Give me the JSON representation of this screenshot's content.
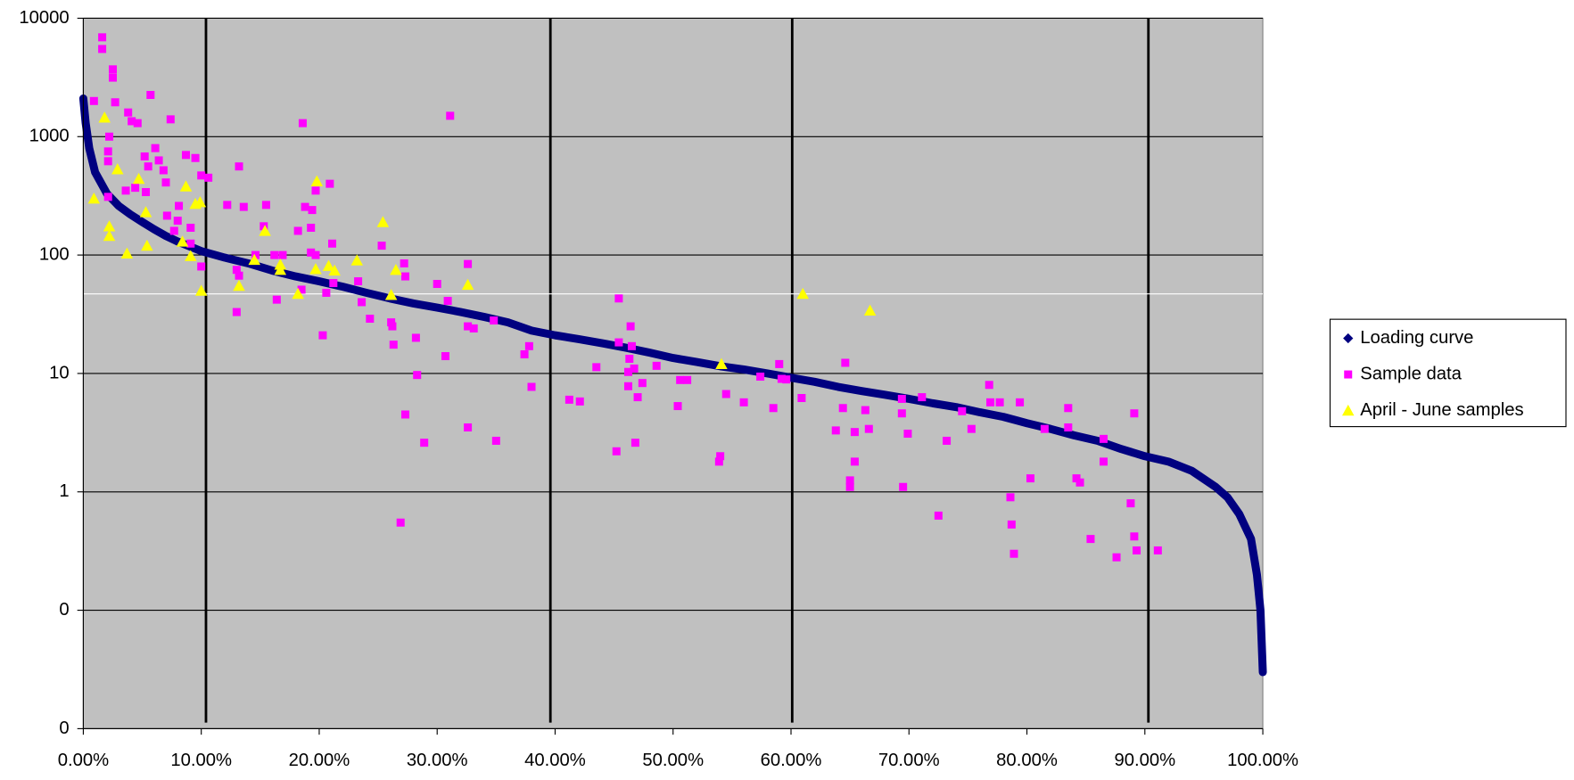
{
  "chart_data": {
    "type": "scatter",
    "log_y": true,
    "grid": true,
    "legend": "right",
    "xlim": [
      0,
      100
    ],
    "ylim": [
      0.01,
      10000
    ],
    "xticks": [
      {
        "value": 0,
        "label": "0.00%"
      },
      {
        "value": 10,
        "label": "10.00%"
      },
      {
        "value": 20,
        "label": "20.00%"
      },
      {
        "value": 30,
        "label": "30.00%"
      },
      {
        "value": 40,
        "label": "40.00%"
      },
      {
        "value": 50,
        "label": "50.00%"
      },
      {
        "value": 60,
        "label": "60.00%"
      },
      {
        "value": 70,
        "label": "70.00%"
      },
      {
        "value": 80,
        "label": "80.00%"
      },
      {
        "value": 90,
        "label": "90.00%"
      },
      {
        "value": 100,
        "label": "100.00%"
      }
    ],
    "yticks": [
      {
        "value": 0.01,
        "label": "0"
      },
      {
        "value": 0.1,
        "label": "0"
      },
      1,
      10,
      100,
      1000,
      10000
    ],
    "vlines": [
      10.4,
      39.6,
      60.1,
      90.3
    ],
    "hlines": [
      47
    ],
    "series": [
      {
        "name": "Loading curve",
        "color": "#000080",
        "marker": "diamond",
        "connected": true,
        "x": [
          0,
          0.2,
          0.5,
          1,
          2,
          3,
          4,
          5,
          6,
          7,
          8,
          10,
          12,
          14,
          16,
          18,
          20,
          22,
          24,
          26,
          28,
          30,
          32,
          34,
          36,
          38,
          40,
          42,
          44,
          46,
          48,
          50,
          52,
          54,
          56,
          58,
          60,
          62,
          64,
          66,
          68,
          70,
          72,
          74,
          76,
          78,
          80,
          82,
          84,
          86,
          88,
          90,
          92,
          94,
          96,
          97,
          98,
          99,
          99.5,
          99.8,
          100
        ],
        "values": [
          2100,
          1300,
          800,
          500,
          330,
          260,
          220,
          190,
          165,
          145,
          130,
          108,
          95,
          85,
          74,
          66,
          60,
          54,
          48,
          43,
          39,
          36,
          33,
          30,
          27,
          23,
          21,
          19.5,
          18,
          16.5,
          15,
          13.5,
          12.5,
          11.5,
          10.8,
          10,
          9.2,
          8.5,
          7.7,
          7.1,
          6.6,
          6.1,
          5.6,
          5.2,
          4.7,
          4.3,
          3.8,
          3.4,
          3.0,
          2.7,
          2.3,
          2.0,
          1.8,
          1.5,
          1.1,
          0.9,
          0.65,
          0.4,
          0.2,
          0.1,
          0.03
        ]
      },
      {
        "name": "Sample data",
        "color": "#ff00ff",
        "marker": "square",
        "x": [
          1.6,
          1.6,
          2.5,
          2.5,
          0.9,
          2.7,
          5.7,
          2.2,
          2.1,
          2.1,
          3.8,
          4.1,
          4.6,
          7.4,
          5.2,
          5.5,
          6.1,
          6.4,
          6.8,
          7.0,
          8.7,
          9.5,
          10,
          10.6,
          13.2,
          3.6,
          4.4,
          5.3,
          2.1,
          7.1,
          8.1,
          8.0,
          7.7,
          9.1,
          9.1,
          10,
          12.2,
          13.6,
          15.5,
          15.3,
          13.0,
          13.2,
          13.0,
          14.6,
          16.2,
          16.9,
          16.4,
          18.2,
          18.6,
          18.8,
          19.4,
          19.3,
          19.7,
          20.9,
          19.3,
          19.7,
          21.1,
          20.3,
          18.5,
          20.6,
          21.2,
          23.3,
          23.6,
          24.3,
          25.3,
          26.1,
          26.2,
          26.3,
          27.2,
          27.3,
          28.2,
          27.3,
          28.3,
          28.9,
          26.9,
          30.0,
          30.9,
          30.7,
          31.1,
          32.6,
          32.6,
          33.1,
          32.6,
          34.8,
          35.0,
          37.4,
          37.8,
          38.0,
          41.2,
          42.1,
          43.5,
          45.4,
          45.4,
          46.4,
          46.5,
          46.3,
          46.2,
          46.7,
          46.2,
          47.4,
          47.0,
          48.6,
          46.8,
          45.2,
          50.6,
          51.2,
          50.4,
          54.0,
          53.9,
          54.5,
          56.0,
          57.4,
          58.5,
          59.0,
          59.2,
          59.6,
          60.9,
          64.6,
          64.4,
          63.8,
          65.4,
          65.4,
          65.0,
          65.0,
          66.3,
          66.6,
          69.4,
          69.4,
          69.9,
          69.5,
          71.1,
          72.5,
          73.2,
          74.5,
          75.3,
          76.8,
          76.9,
          77.7,
          79.4,
          78.6,
          78.7,
          78.9,
          80.3,
          81.5,
          83.5,
          83.5,
          84.2,
          84.5,
          86.5,
          86.5,
          85.4,
          87.6,
          88.8,
          89.1,
          89.1,
          89.3,
          91.1
        ],
        "values": [
          6900,
          5500,
          3700,
          3150,
          2000,
          1950,
          2250,
          1000,
          750,
          620,
          1600,
          1350,
          1300,
          1400,
          680,
          560,
          800,
          630,
          520,
          410,
          700,
          660,
          470,
          450,
          560,
          350,
          370,
          340,
          310,
          215,
          260,
          195,
          160,
          170,
          125,
          80,
          265,
          255,
          265,
          175,
          75,
          67,
          33,
          100,
          100,
          100,
          42,
          160,
          1300,
          255,
          240,
          170,
          350,
          400,
          105,
          100,
          125,
          21,
          51,
          48,
          58,
          60,
          40,
          29,
          120,
          27,
          25,
          17.5,
          85,
          66,
          20,
          4.5,
          9.7,
          2.6,
          0.55,
          57,
          41,
          14,
          1500,
          84,
          25,
          24,
          3.5,
          28,
          2.7,
          14.5,
          17,
          7.7,
          6.0,
          5.8,
          11.3,
          43,
          18.3,
          25,
          17,
          13.3,
          10.3,
          11.0,
          7.8,
          8.3,
          6.3,
          11.6,
          2.6,
          2.2,
          8.8,
          8.8,
          5.3,
          2.0,
          1.8,
          6.7,
          5.7,
          9.4,
          5.1,
          12,
          9.0,
          8.9,
          6.2,
          12.3,
          5.1,
          3.3,
          3.2,
          1.8,
          1.25,
          1.1,
          4.9,
          3.4,
          6.1,
          4.6,
          3.1,
          1.1,
          6.3,
          0.63,
          2.7,
          4.8,
          3.4,
          8.0,
          5.7,
          5.7,
          5.7,
          0.9,
          0.53,
          0.3,
          1.3,
          3.4,
          5.1,
          3.5,
          1.3,
          1.2,
          2.8,
          1.8,
          0.4,
          0.28,
          0.8,
          4.6,
          0.42,
          0.32,
          0.32
        ]
      },
      {
        "name": "April - June samples",
        "color": "#ffff00",
        "marker": "triangle",
        "x": [
          0.9,
          1.8,
          2.2,
          2.2,
          2.9,
          4.7,
          3.7,
          5.3,
          5.4,
          8.4,
          8.7,
          9.5,
          9.9,
          9.1,
          10.0,
          13.2,
          14.5,
          15.4,
          16.7,
          16.7,
          18.2,
          19.8,
          19.7,
          20.8,
          21.3,
          23.2,
          25.4,
          26.5,
          26.1,
          32.6,
          54.1,
          61.0,
          66.7
        ],
        "values": [
          300,
          1450,
          175,
          145,
          530,
          440,
          103,
          230,
          120,
          130,
          380,
          270,
          280,
          98,
          50,
          55,
          91,
          160,
          83,
          75,
          47,
          420,
          76,
          81,
          74,
          90,
          190,
          75,
          46,
          56,
          12,
          47,
          34
        ]
      }
    ]
  }
}
